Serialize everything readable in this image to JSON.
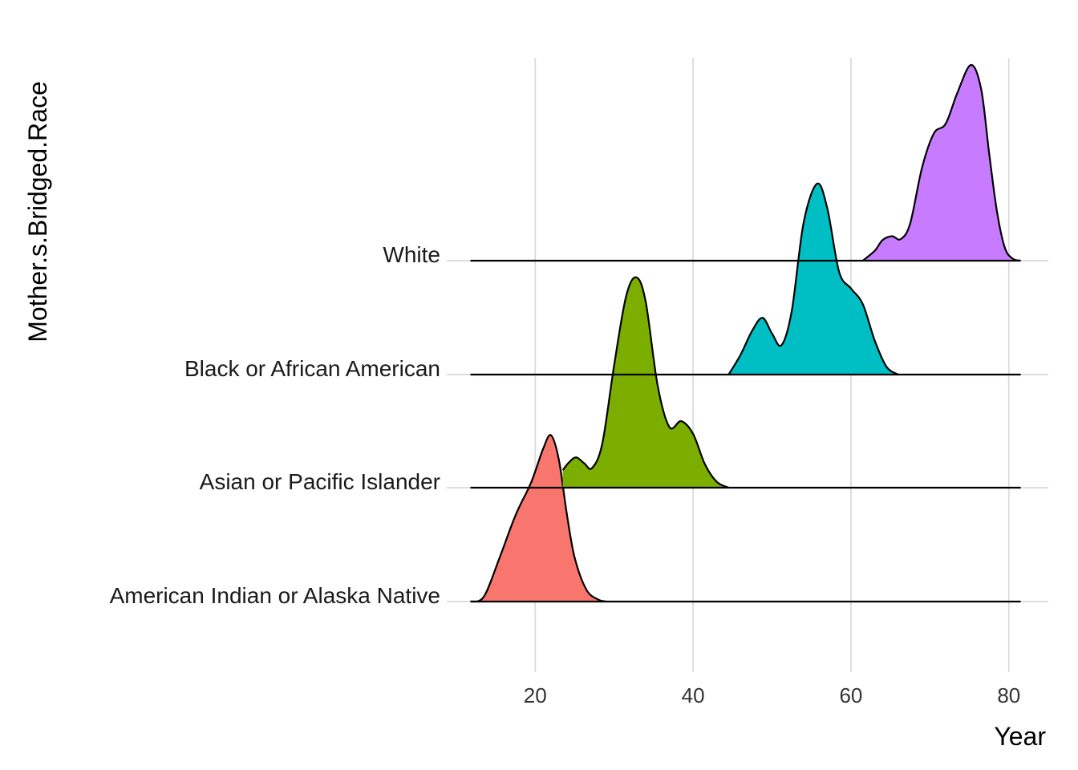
{
  "chart_data": {
    "type": "ridgeline",
    "xlabel": "Year",
    "ylabel": "Mother.s.Bridged.Race",
    "xlim": [
      8.8,
      85
    ],
    "x_ticks": [
      20,
      40,
      60,
      80
    ],
    "x_tick_labels": [
      "20",
      "40",
      "60",
      "80"
    ],
    "grid": "vertical major lines",
    "legend": "none",
    "categories": [
      "American Indian or Alaska Native",
      "Asian or Pacific Islander",
      "Black or African American",
      "White"
    ],
    "series": [
      {
        "name": "American Indian or Alaska Native",
        "color": "#F8766D",
        "x": [
          11.8,
          13.5,
          15.5,
          17.5,
          19.5,
          21.0,
          22.0,
          23.0,
          24.0,
          25.0,
          26.5,
          28.0,
          29.0
        ],
        "density": [
          0.0,
          0.05,
          0.45,
          0.88,
          1.22,
          1.56,
          1.7,
          1.45,
          0.9,
          0.45,
          0.12,
          0.02,
          0.0
        ]
      },
      {
        "name": "Asian or Pacific Islander",
        "color": "#7CAE00",
        "x": [
          23.5,
          24.3,
          25.2,
          26.2,
          27.2,
          28.5,
          30.0,
          31.5,
          32.8,
          34.0,
          35.5,
          37.0,
          38.5,
          40.0,
          41.5,
          43.0,
          44.5
        ],
        "density": [
          0.18,
          0.26,
          0.31,
          0.25,
          0.2,
          0.45,
          1.25,
          1.95,
          2.15,
          1.9,
          1.05,
          0.62,
          0.68,
          0.55,
          0.24,
          0.06,
          0.0
        ]
      },
      {
        "name": "Black or African American",
        "color": "#00BFC4",
        "x": [
          44.5,
          46.0,
          47.5,
          48.8,
          50.0,
          51.2,
          52.5,
          54.0,
          55.7,
          57.0,
          58.5,
          60.0,
          61.5,
          63.0,
          64.5,
          66.0
        ],
        "density": [
          0.0,
          0.2,
          0.45,
          0.58,
          0.42,
          0.3,
          0.65,
          1.55,
          1.95,
          1.7,
          1.05,
          0.88,
          0.72,
          0.35,
          0.08,
          0.0
        ]
      },
      {
        "name": "White",
        "color": "#C77CFF",
        "x": [
          61.5,
          63.0,
          64.0,
          65.2,
          66.3,
          67.5,
          69.0,
          70.5,
          72.0,
          73.5,
          75.2,
          76.5,
          77.5,
          78.5,
          79.5,
          80.5,
          81.5
        ],
        "density": [
          0.0,
          0.1,
          0.21,
          0.25,
          0.22,
          0.38,
          0.95,
          1.3,
          1.4,
          1.72,
          2.0,
          1.75,
          1.1,
          0.5,
          0.13,
          0.02,
          0.0
        ]
      }
    ]
  }
}
